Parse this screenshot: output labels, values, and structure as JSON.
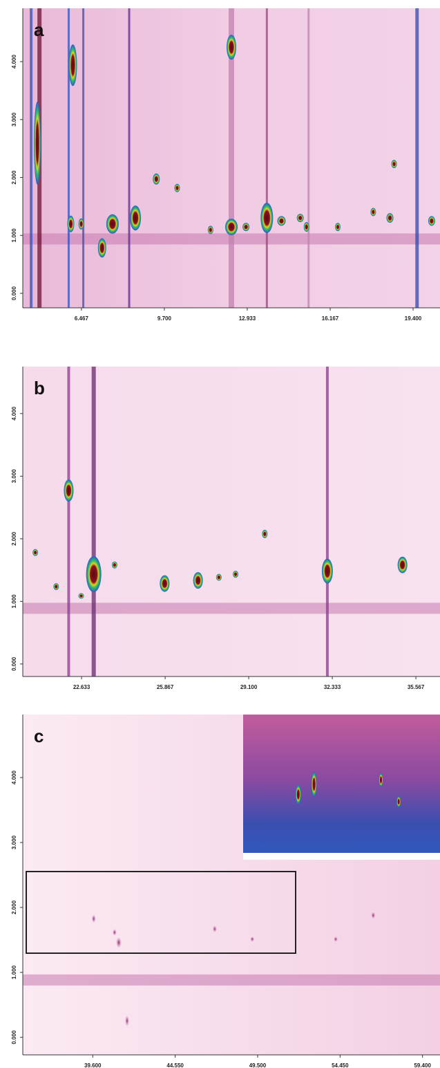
{
  "chart_data": [
    {
      "type": "heatmap",
      "panel_label": "a",
      "xlim": [
        4.18,
        20.45
      ],
      "ylim": [
        -0.25,
        4.92
      ],
      "xticks": [
        6.467,
        {
          "value": 9.7,
          "label": "9.700"
        },
        12.933,
        16.167,
        {
          "value": 19.4,
          "label": "19.400"
        }
      ],
      "yticks": [
        {
          "value": 0,
          "label": "0.000"
        },
        {
          "value": 1,
          "label": "1.000"
        },
        {
          "value": 2,
          "label": "2.000"
        },
        {
          "value": 3,
          "label": "3.000"
        },
        {
          "value": 4,
          "label": "4.000"
        }
      ]
    },
    {
      "type": "heatmap",
      "panel_label": "b",
      "xlim": [
        20.36,
        36.5
      ],
      "ylim": [
        -0.2,
        4.75
      ],
      "xticks": [
        22.633,
        25.867,
        {
          "value": 29.1,
          "label": "29.100"
        },
        32.333,
        35.567
      ],
      "yticks": [
        {
          "value": 0,
          "label": "0.000"
        },
        {
          "value": 1,
          "label": "1.000"
        },
        {
          "value": 2,
          "label": "2.000"
        },
        {
          "value": 3,
          "label": "3.000"
        },
        {
          "value": 4,
          "label": "4.000"
        }
      ]
    },
    {
      "type": "heatmap",
      "panel_label": "c",
      "xlim": [
        35.4,
        60.45
      ],
      "ylim": [
        -0.27,
        4.97
      ],
      "xticks": [
        {
          "value": 39.6,
          "label": "39.600"
        },
        {
          "value": 44.55,
          "label": "44.550"
        },
        {
          "value": 49.5,
          "label": "49.500"
        },
        {
          "value": 54.45,
          "label": "54.450"
        },
        {
          "value": 59.4,
          "label": "59.400"
        }
      ],
      "yticks": [
        {
          "value": 0,
          "label": "0.000"
        },
        {
          "value": 1,
          "label": "1.000"
        },
        {
          "value": 2,
          "label": "2.000"
        },
        {
          "value": 3,
          "label": "3.000"
        },
        {
          "value": 4,
          "label": "4.000"
        }
      ]
    }
  ]
}
